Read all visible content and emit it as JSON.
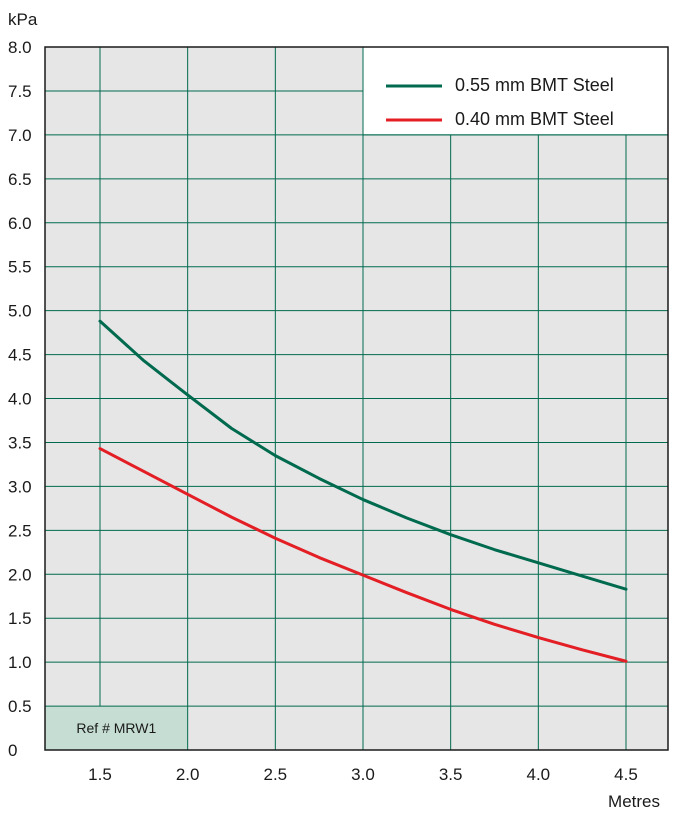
{
  "chart_data": {
    "type": "line",
    "title": "",
    "xlabel": "Metres",
    "ylabel": "kPa",
    "xlim": [
      1.5,
      4.5
    ],
    "ylim": [
      0,
      8.0
    ],
    "x_ticks": [
      "1.5",
      "2.0",
      "2.5",
      "3.0",
      "3.5",
      "4.0",
      "4.5"
    ],
    "y_ticks": [
      "0",
      "0.5",
      "1.0",
      "1.5",
      "2.0",
      "2.5",
      "3.0",
      "3.5",
      "4.0",
      "4.5",
      "5.0",
      "5.5",
      "6.0",
      "6.5",
      "7.0",
      "7.5",
      "8.0"
    ],
    "grid": true,
    "legend_position": "top-right",
    "series": [
      {
        "name": "0.55 mm BMT Steel",
        "color": "#006a4e",
        "x": [
          1.5,
          1.75,
          2.0,
          2.25,
          2.5,
          2.75,
          3.0,
          3.25,
          3.5,
          3.75,
          4.0,
          4.25,
          4.5
        ],
        "y": [
          4.88,
          4.43,
          4.04,
          3.66,
          3.35,
          3.09,
          2.85,
          2.64,
          2.45,
          2.28,
          2.13,
          1.98,
          1.83
        ]
      },
      {
        "name": "0.40 mm BMT Steel",
        "color": "#e31e24",
        "x": [
          1.5,
          1.75,
          2.0,
          2.25,
          2.5,
          2.75,
          3.0,
          3.25,
          3.5,
          3.75,
          4.0,
          4.25,
          4.5
        ],
        "y": [
          3.43,
          3.17,
          2.91,
          2.65,
          2.41,
          2.19,
          1.99,
          1.79,
          1.6,
          1.43,
          1.28,
          1.14,
          1.01
        ]
      }
    ],
    "annotation": "Ref # MRW1"
  },
  "colors": {
    "plot_background": "#e6e6e6",
    "grid": "#006a4e",
    "legend_background": "#ffffff",
    "ref_box": "#c5ddd3"
  }
}
